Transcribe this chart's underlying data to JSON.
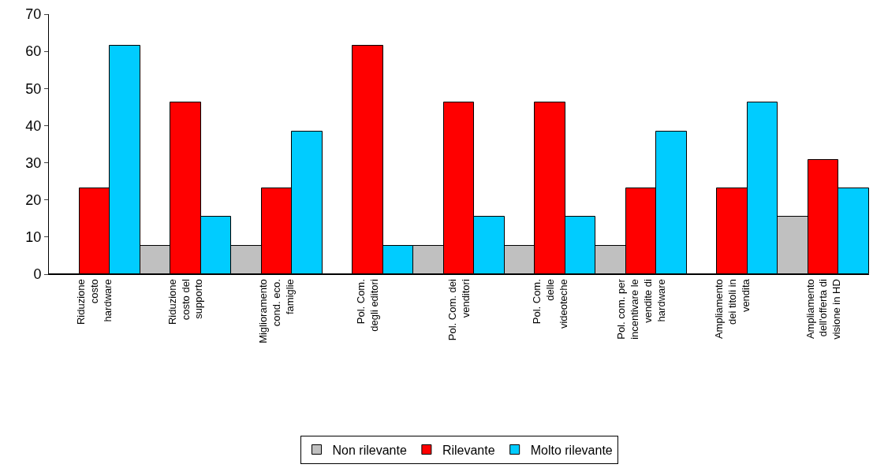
{
  "chart_data": {
    "type": "bar",
    "categories": [
      "Riduzione\ncosto\nhardware",
      "Riduzione\ncosto del\nsupporto",
      "Miglioramento\ncond. eco.\nfamiglie",
      "Pol. Com.\ndegli editori",
      "Pol. Com. dei\nvenditori",
      "Pol. Com.\ndelle\nvideoteche",
      "Pol. com. per\nincentivare le\nvendite di\nhardware",
      "Ampliamento\ndei titoli in\nvendita",
      "Ampliamento\ndell'offerta di\nvisione in HD"
    ],
    "series": [
      {
        "name": "Non rilevante",
        "color": "#c0c0c0",
        "values": [
          0,
          7.7,
          7.7,
          0,
          7.7,
          7.7,
          7.7,
          0,
          15.4
        ]
      },
      {
        "name": "Rilevante",
        "color": "#ff0000",
        "values": [
          23.1,
          46.2,
          23.1,
          61.5,
          46.2,
          46.2,
          23.1,
          23.1,
          30.8
        ]
      },
      {
        "name": "Molto rilevante",
        "color": "#00ccff",
        "values": [
          61.5,
          15.4,
          38.5,
          7.7,
          15.4,
          15.4,
          38.5,
          46.2,
          23.1
        ]
      }
    ],
    "ylim": [
      0,
      70
    ],
    "yticks": [
      0,
      10,
      20,
      30,
      40,
      50,
      60,
      70
    ],
    "grid": false,
    "legend": "bottom"
  }
}
